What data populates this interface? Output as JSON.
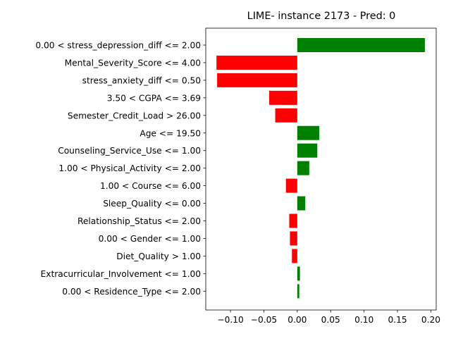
{
  "chart_data": {
    "type": "bar",
    "orientation": "horizontal",
    "title": "LIME- instance 2173 - Pred: 0",
    "xlabel": "",
    "ylabel": "",
    "xlim": [
      -0.137,
      0.208
    ],
    "xticks": [
      -0.1,
      -0.05,
      0.0,
      0.05,
      0.1,
      0.15,
      0.2
    ],
    "xtick_labels": [
      "−0.10",
      "−0.05",
      "0.00",
      "0.05",
      "0.10",
      "0.15",
      "0.20"
    ],
    "grid": false,
    "legend": "none",
    "positive_color": "#008000",
    "negative_color": "#ff0000",
    "categories": [
      "0.00 < stress_depression_diff <= 2.00",
      "Mental_Severity_Score <= 4.00",
      "stress_anxiety_diff <= 0.50",
      "3.50 < CGPA <= 3.69",
      "Semester_Credit_Load > 26.00",
      "Age <= 19.50",
      "Counseling_Service_Use <= 1.00",
      "1.00 < Physical_Activity <= 2.00",
      "1.00 < Course <= 6.00",
      "Sleep_Quality <= 0.00",
      "Relationship_Status <= 2.00",
      "0.00 < Gender <= 1.00",
      "Diet_Quality > 1.00",
      "Extracurricular_Involvement <= 1.00",
      "0.00 < Residence_Type <= 2.00"
    ],
    "values": [
      0.191,
      -0.121,
      -0.12,
      -0.042,
      -0.033,
      0.033,
      0.03,
      0.018,
      -0.017,
      0.012,
      -0.012,
      -0.011,
      -0.008,
      0.004,
      0.003
    ]
  }
}
